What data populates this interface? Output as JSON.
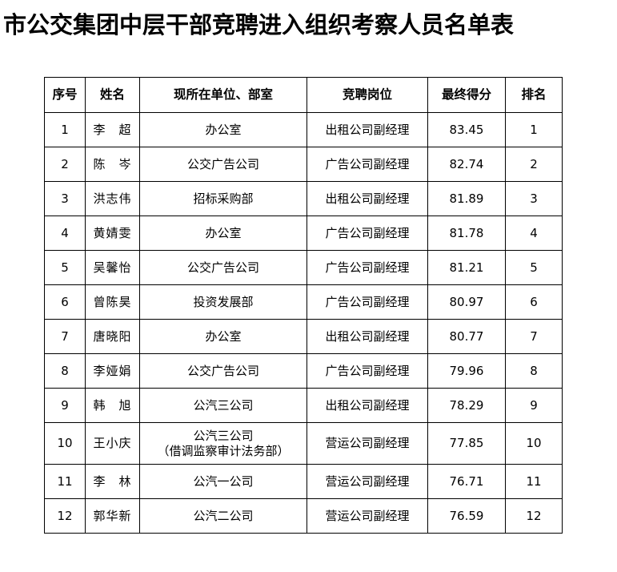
{
  "title": "市公交集团中层干部竞聘进入组织考察人员名单表",
  "headers": [
    "序号",
    "姓名",
    "现所在单位、部室",
    "竞聘岗位",
    "最终得分",
    "排名"
  ],
  "rows": [
    {
      "no": "1",
      "name": "李　超",
      "unit": "办公室",
      "unit2": "",
      "position": "出租公司副经理",
      "score": "83.45",
      "rank": "1"
    },
    {
      "no": "2",
      "name": "陈　岑",
      "unit": "公交广告公司",
      "unit2": "",
      "position": "广告公司副经理",
      "score": "82.74",
      "rank": "2"
    },
    {
      "no": "3",
      "name": "洪志伟",
      "unit": "招标采购部",
      "unit2": "",
      "position": "出租公司副经理",
      "score": "81.89",
      "rank": "3"
    },
    {
      "no": "4",
      "name": "黄婧雯",
      "unit": "办公室",
      "unit2": "",
      "position": "广告公司副经理",
      "score": "81.78",
      "rank": "4"
    },
    {
      "no": "5",
      "name": "吴馨怡",
      "unit": "公交广告公司",
      "unit2": "",
      "position": "广告公司副经理",
      "score": "81.21",
      "rank": "5"
    },
    {
      "no": "6",
      "name": "曾陈昊",
      "unit": "投资发展部",
      "unit2": "",
      "position": "广告公司副经理",
      "score": "80.97",
      "rank": "6"
    },
    {
      "no": "7",
      "name": "唐晓阳",
      "unit": "办公室",
      "unit2": "",
      "position": "出租公司副经理",
      "score": "80.77",
      "rank": "7"
    },
    {
      "no": "8",
      "name": "李娅娟",
      "unit": "公交广告公司",
      "unit2": "",
      "position": "广告公司副经理",
      "score": "79.96",
      "rank": "8"
    },
    {
      "no": "9",
      "name": "韩　旭",
      "unit": "公汽三公司",
      "unit2": "",
      "position": "出租公司副经理",
      "score": "78.29",
      "rank": "9"
    },
    {
      "no": "10",
      "name": "王小庆",
      "unit": "公汽三公司",
      "unit2": "（借调监察审计法务部）",
      "position": "营运公司副经理",
      "score": "77.85",
      "rank": "10"
    },
    {
      "no": "11",
      "name": "李　林",
      "unit": "公汽一公司",
      "unit2": "",
      "position": "营运公司副经理",
      "score": "76.71",
      "rank": "11"
    },
    {
      "no": "12",
      "name": "郭华新",
      "unit": "公汽二公司",
      "unit2": "",
      "position": "营运公司副经理",
      "score": "76.59",
      "rank": "12"
    }
  ]
}
